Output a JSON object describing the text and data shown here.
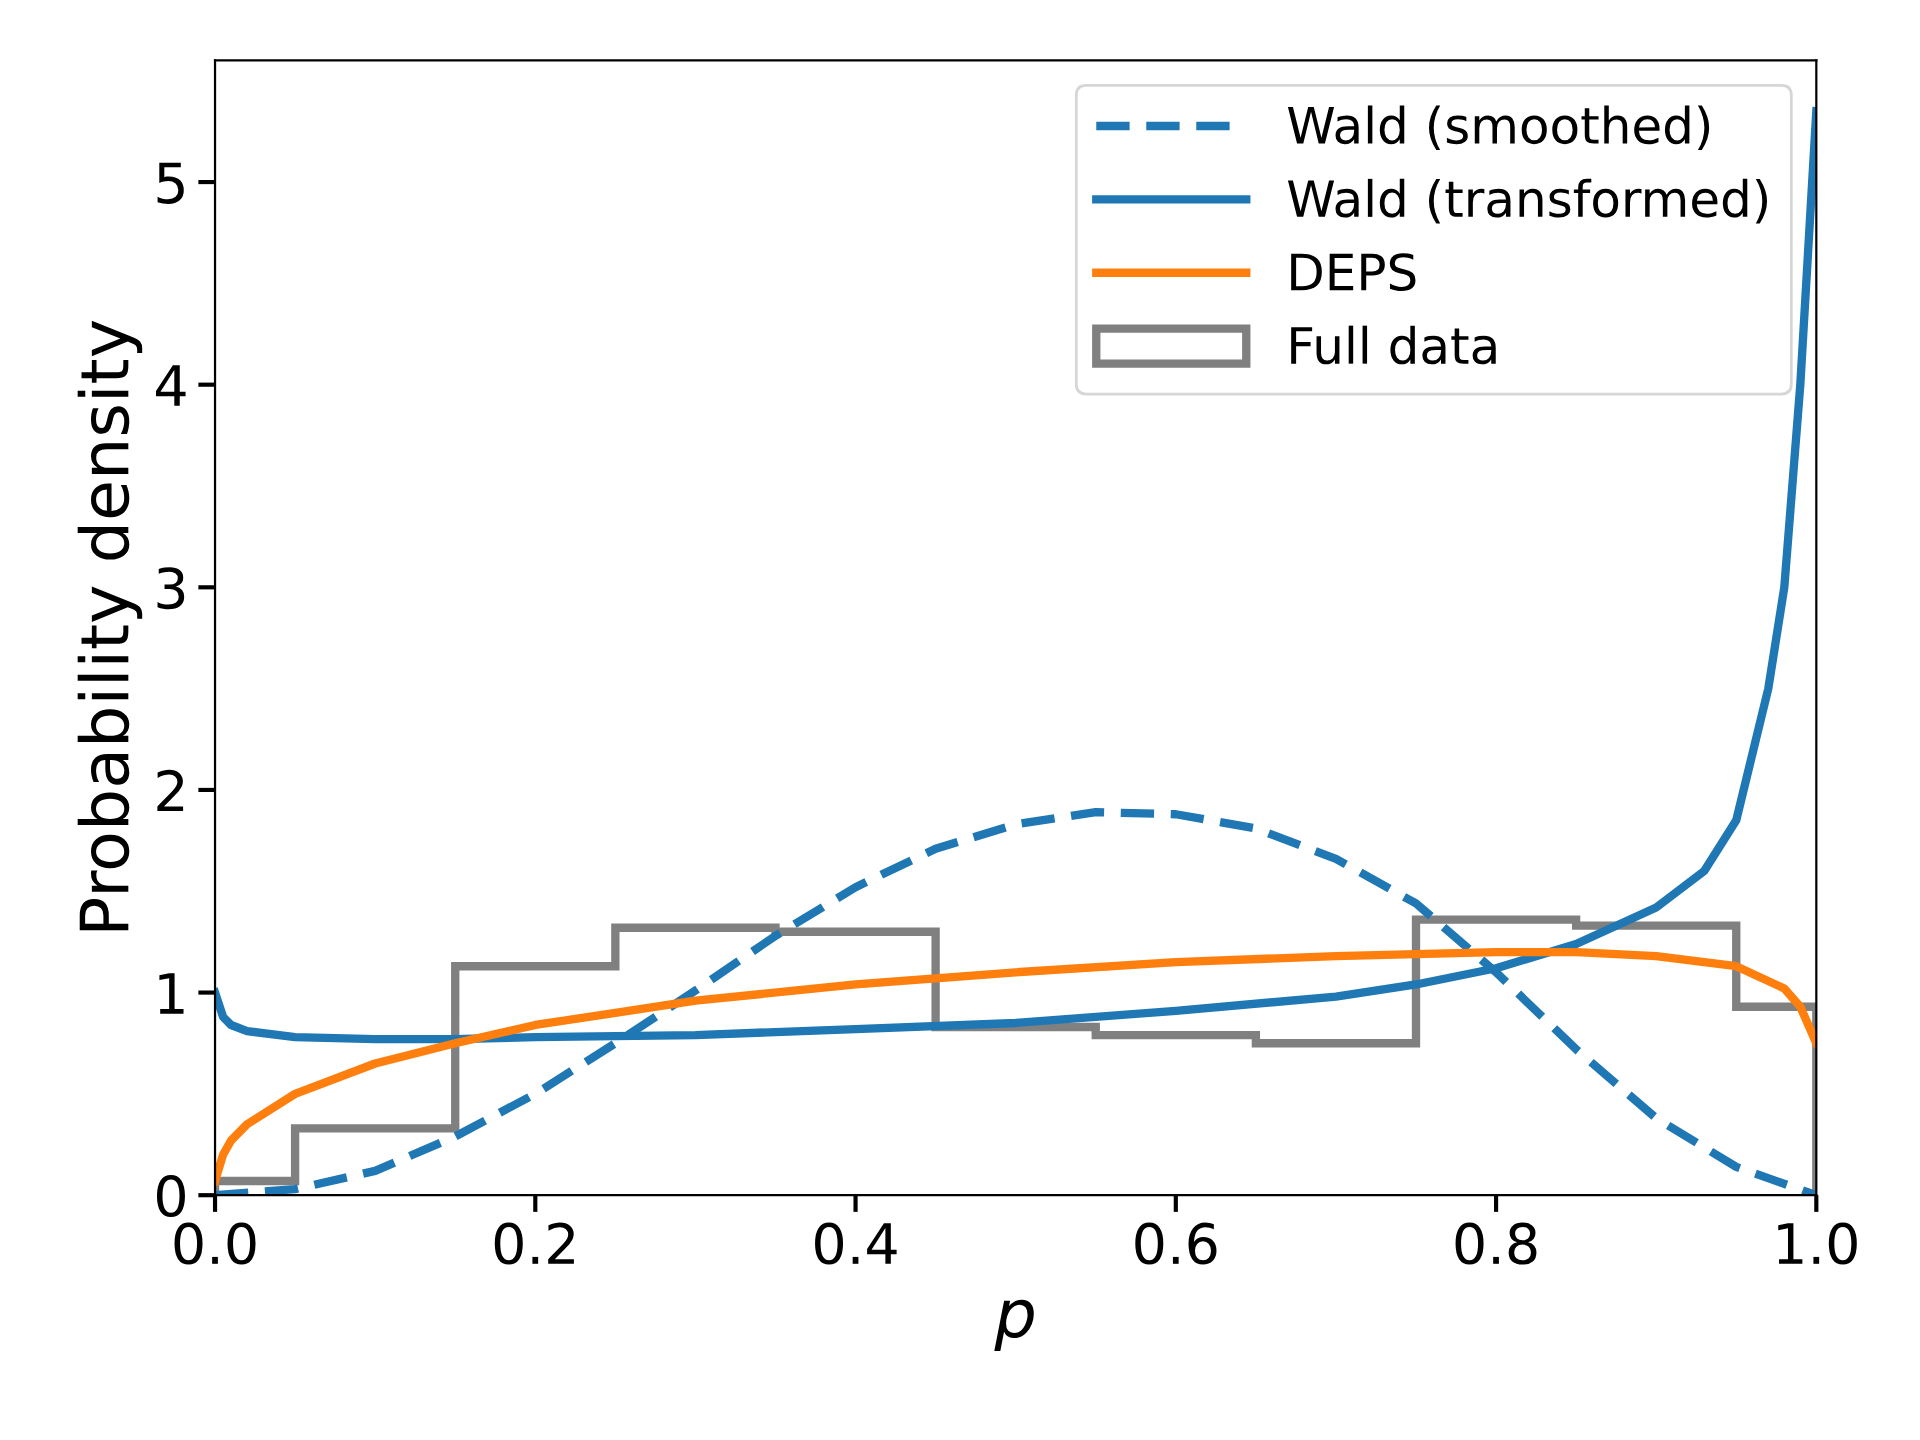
{
  "chart_data": {
    "type": "line",
    "xlabel": "p",
    "ylabel": "Probability density",
    "xlim": [
      0,
      1
    ],
    "ylim": [
      0,
      5.6
    ],
    "xticks": [
      {
        "value": 0,
        "label": "0.0"
      },
      {
        "value": 0.2,
        "label": "0.2"
      },
      {
        "value": 0.4,
        "label": "0.4"
      },
      {
        "value": 0.6,
        "label": "0.6"
      },
      {
        "value": 0.8,
        "label": "0.8"
      },
      {
        "value": 1,
        "label": "1.0"
      }
    ],
    "yticks": [
      0,
      1,
      2,
      3,
      4,
      5
    ],
    "legend": "top right",
    "grid": false,
    "series": [
      {
        "name": "Wald (smoothed)",
        "line_style": "dashed",
        "color": "#1f77b4",
        "x": [
          0,
          0.05,
          0.1,
          0.15,
          0.2,
          0.25,
          0.3,
          0.35,
          0.4,
          0.45,
          0.5,
          0.55,
          0.6,
          0.65,
          0.7,
          0.75,
          0.8,
          0.85,
          0.9,
          0.95,
          1.0
        ],
        "values": [
          0,
          0.03,
          0.12,
          0.29,
          0.5,
          0.75,
          1.01,
          1.28,
          1.52,
          1.71,
          1.83,
          1.89,
          1.88,
          1.81,
          1.66,
          1.44,
          1.1,
          0.72,
          0.38,
          0.14,
          0
        ]
      },
      {
        "name": "Wald (transformed)",
        "line_style": "solid",
        "color": "#1f77b4",
        "x": [
          0,
          0.005,
          0.01,
          0.02,
          0.05,
          0.1,
          0.15,
          0.2,
          0.3,
          0.4,
          0.5,
          0.6,
          0.7,
          0.75,
          0.8,
          0.85,
          0.9,
          0.93,
          0.95,
          0.97,
          0.98,
          0.99,
          1.0
        ],
        "values": [
          1.0,
          0.88,
          0.84,
          0.81,
          0.78,
          0.77,
          0.77,
          0.78,
          0.79,
          0.82,
          0.85,
          0.91,
          0.98,
          1.04,
          1.12,
          1.24,
          1.42,
          1.6,
          1.85,
          2.5,
          3.0,
          4.0,
          5.35
        ]
      },
      {
        "name": "DEPS",
        "line_style": "solid",
        "color": "#ff7f0e",
        "x": [
          0,
          0.005,
          0.01,
          0.02,
          0.05,
          0.1,
          0.15,
          0.2,
          0.25,
          0.3,
          0.4,
          0.5,
          0.6,
          0.7,
          0.8,
          0.85,
          0.9,
          0.95,
          0.98,
          0.99,
          1.0
        ],
        "values": [
          0.07,
          0.2,
          0.27,
          0.35,
          0.5,
          0.65,
          0.75,
          0.84,
          0.9,
          0.96,
          1.04,
          1.1,
          1.15,
          1.18,
          1.2,
          1.2,
          1.18,
          1.13,
          1.02,
          0.93,
          0.75
        ]
      },
      {
        "name": "Full data",
        "type": "histogram",
        "color": "#808080",
        "bins": [
          0,
          0.05,
          0.15,
          0.25,
          0.35,
          0.45,
          0.55,
          0.65,
          0.75,
          0.85,
          0.95,
          1.0
        ],
        "values": [
          0.07,
          0.33,
          1.13,
          1.32,
          1.3,
          0.83,
          0.79,
          0.75,
          1.36,
          1.33,
          0.93
        ]
      }
    ]
  }
}
